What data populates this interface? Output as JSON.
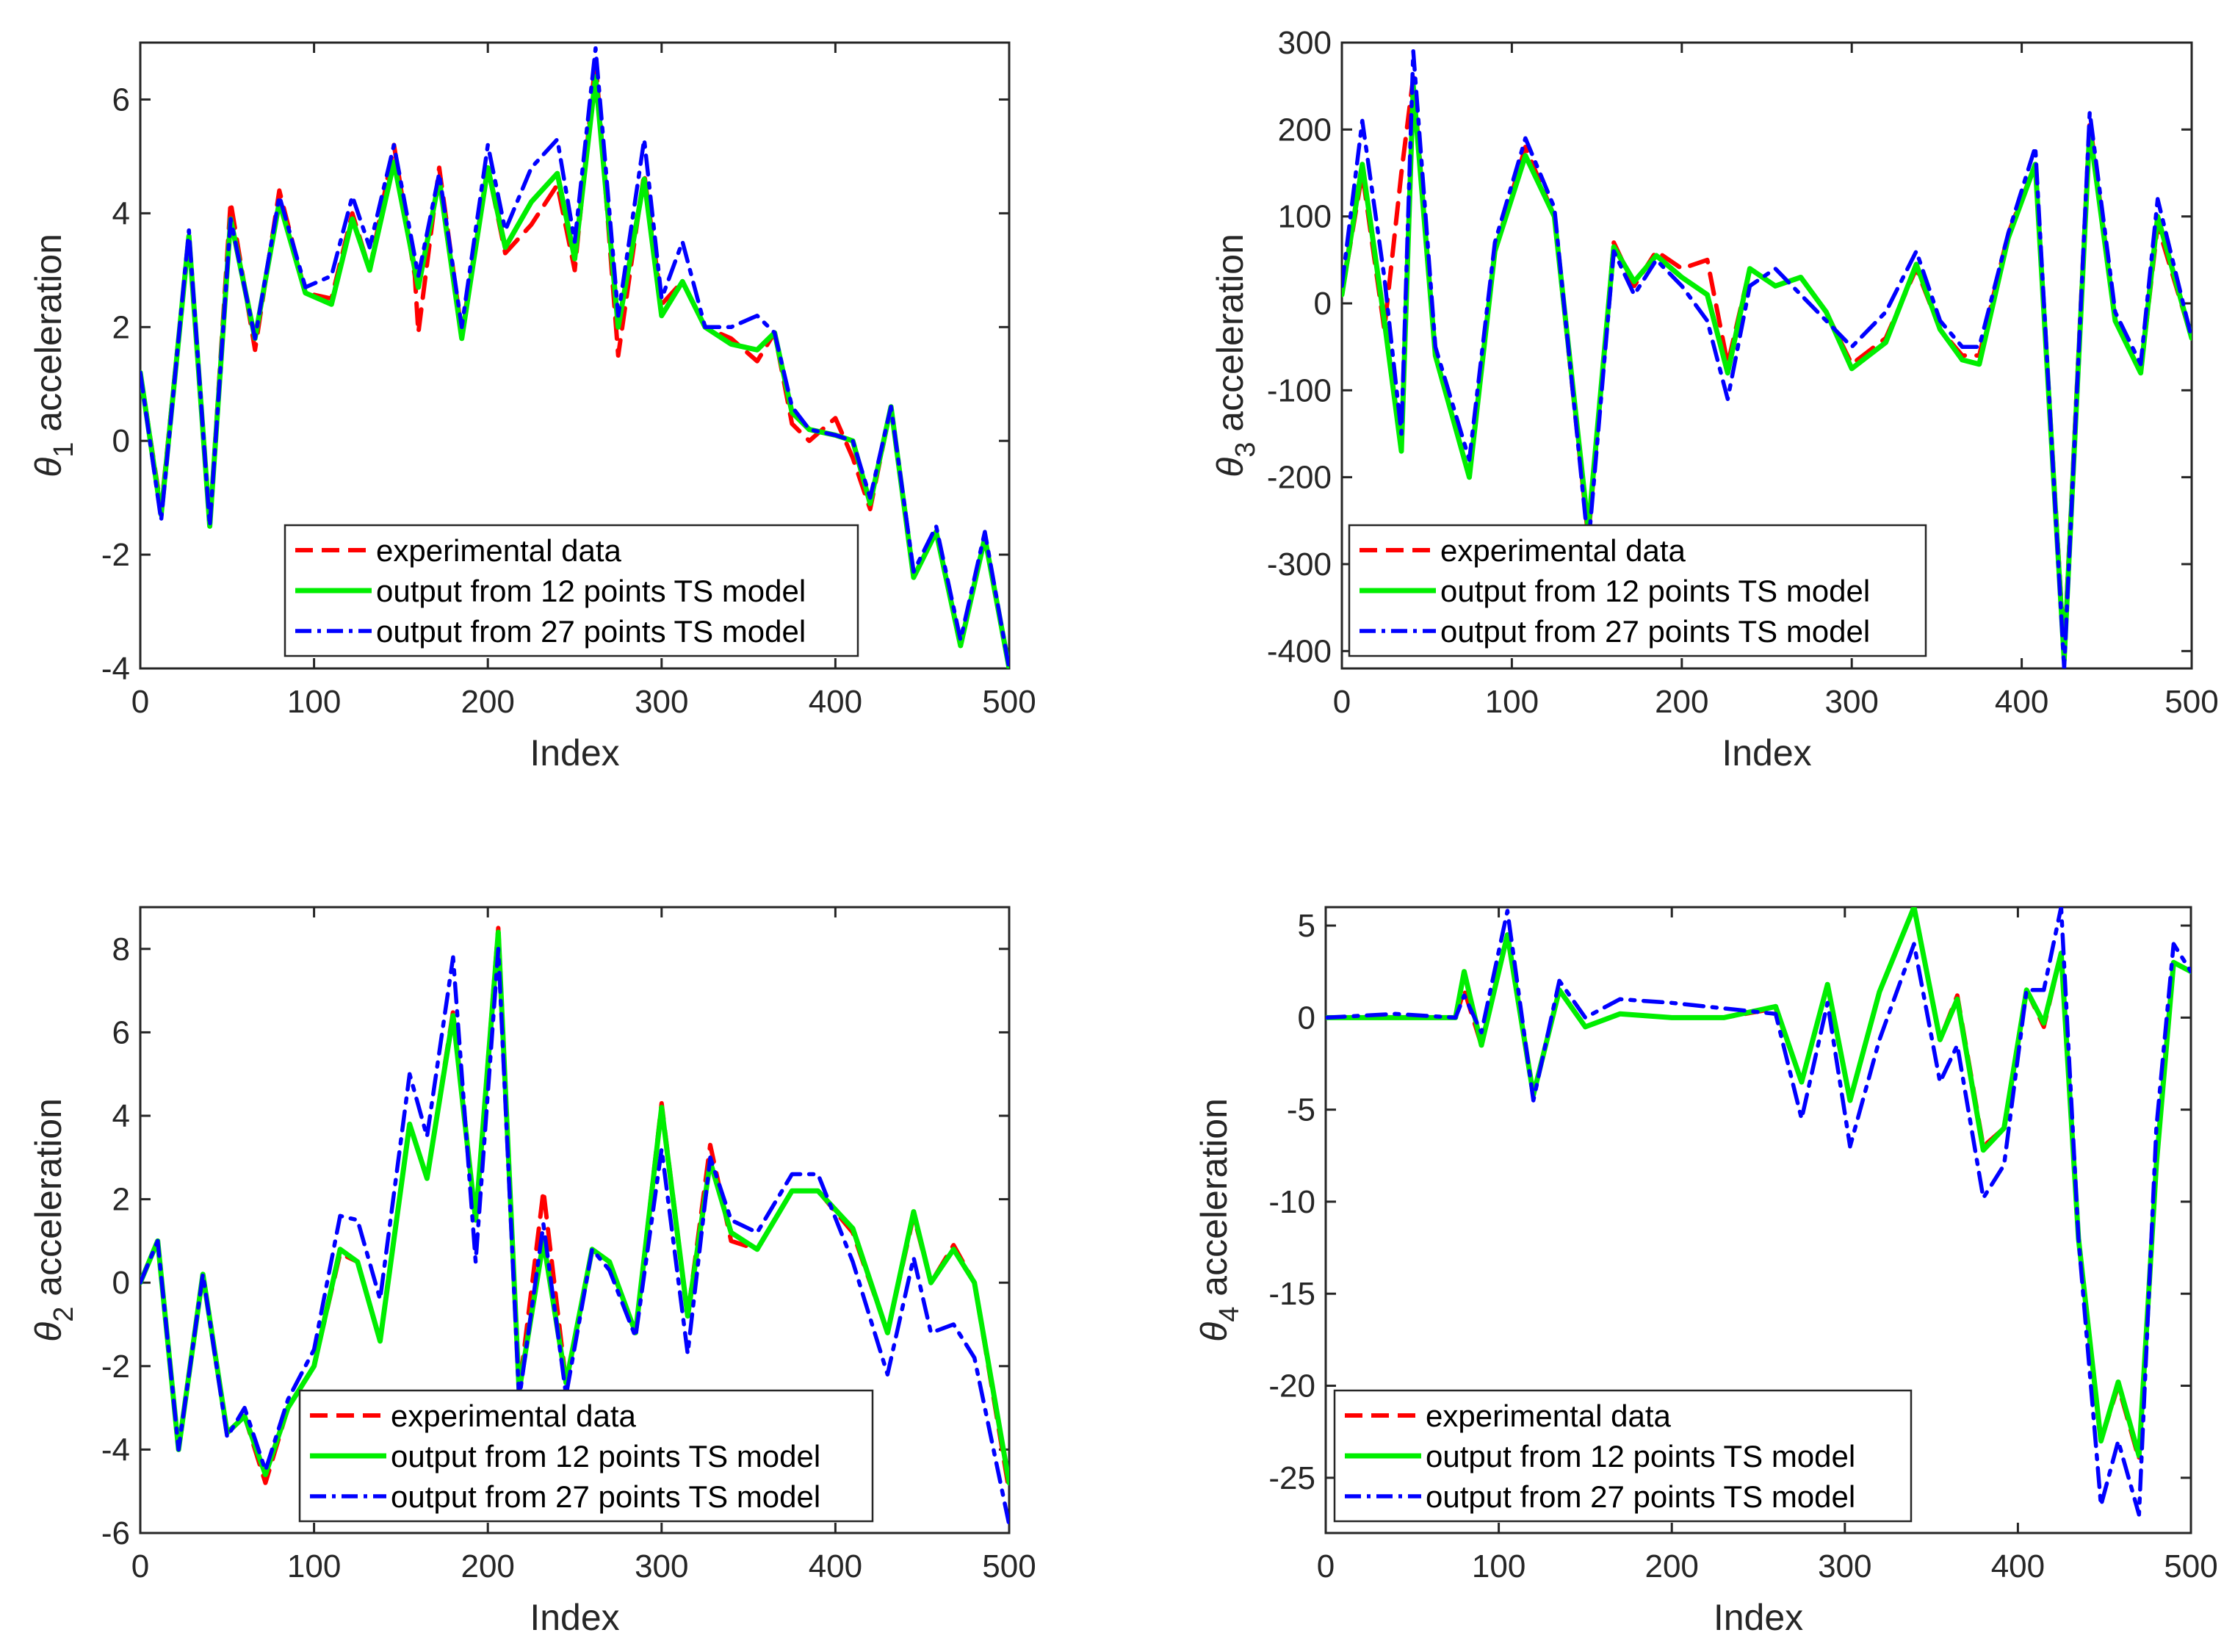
{
  "legend": {
    "experimental": "experimental data",
    "ts12": "output from 12 points TS model",
    "ts27": "output from 27 points TS model"
  },
  "colors": {
    "experimental": "#ff0000",
    "ts12": "#00ee00",
    "ts27": "#0000ff",
    "axis": "#262626"
  },
  "chart_data": [
    {
      "id": "theta1",
      "type": "line",
      "title": "",
      "xlabel": "Index",
      "ylabel_symbol": "θ",
      "ylabel_subscript": "1",
      "ylabel_text": "acceleration",
      "xlim": [
        0,
        500
      ],
      "ylim": [
        -4,
        7
      ],
      "xticks": [
        0,
        100,
        200,
        300,
        400,
        500
      ],
      "yticks": [
        -4,
        -2,
        0,
        2,
        4,
        6
      ],
      "legend_position": "bottom-center",
      "series": [
        {
          "name": "experimental data",
          "key": "experimental",
          "style": "dashed",
          "x": [
            0,
            12,
            28,
            40,
            52,
            66,
            80,
            95,
            110,
            122,
            132,
            146,
            158,
            160,
            172,
            185,
            200,
            210,
            225,
            240,
            250,
            262,
            275,
            290,
            300,
            312,
            325,
            340,
            355,
            365,
            375,
            385,
            400,
            410,
            420,
            432,
            445,
            458,
            472,
            486,
            500
          ],
          "y": [
            1.2,
            -1.2,
            3.6,
            -1.5,
            4.2,
            1.6,
            4.4,
            2.6,
            2.5,
            4.0,
            3.0,
            5.2,
            2.9,
            1.9,
            4.8,
            1.9,
            4.8,
            3.3,
            3.8,
            4.5,
            3.0,
            6.7,
            1.5,
            4.7,
            2.4,
            2.8,
            2.0,
            1.8,
            1.4,
            1.9,
            0.3,
            0.0,
            0.4,
            -0.3,
            -1.2,
            0.6,
            -2.4,
            -1.6,
            -3.6,
            -1.7,
            -4.0
          ]
        },
        {
          "name": "output from 12 points TS model",
          "key": "ts12",
          "style": "solid",
          "x": [
            0,
            12,
            28,
            40,
            52,
            66,
            80,
            95,
            110,
            122,
            132,
            146,
            160,
            172,
            185,
            200,
            210,
            225,
            240,
            250,
            262,
            275,
            290,
            300,
            312,
            325,
            340,
            355,
            365,
            375,
            385,
            400,
            410,
            420,
            432,
            445,
            458,
            472,
            486,
            500
          ],
          "y": [
            1.2,
            -1.3,
            3.6,
            -1.5,
            3.9,
            1.8,
            4.2,
            2.6,
            2.4,
            3.9,
            3.0,
            4.9,
            2.7,
            4.6,
            1.8,
            4.8,
            3.4,
            4.2,
            4.7,
            3.2,
            6.4,
            2.0,
            4.6,
            2.2,
            2.8,
            2.0,
            1.7,
            1.6,
            1.9,
            0.5,
            0.2,
            0.1,
            0.0,
            -1.1,
            0.6,
            -2.4,
            -1.6,
            -3.6,
            -1.7,
            -4.0
          ]
        },
        {
          "name": "output from 27 points TS model",
          "key": "ts27",
          "style": "dashdot",
          "x": [
            0,
            12,
            28,
            40,
            52,
            66,
            80,
            95,
            110,
            122,
            132,
            146,
            160,
            172,
            185,
            200,
            210,
            225,
            240,
            250,
            262,
            275,
            290,
            300,
            312,
            325,
            340,
            355,
            365,
            375,
            385,
            400,
            410,
            420,
            432,
            445,
            458,
            472,
            486,
            500
          ],
          "y": [
            1.2,
            -1.4,
            3.7,
            -1.5,
            3.9,
            1.8,
            4.3,
            2.7,
            2.9,
            4.3,
            3.4,
            5.2,
            2.9,
            4.7,
            2.0,
            5.2,
            3.7,
            4.8,
            5.3,
            3.5,
            6.9,
            2.2,
            5.3,
            2.5,
            3.5,
            2.0,
            2.0,
            2.2,
            1.9,
            0.6,
            0.2,
            0.1,
            0.0,
            -1.0,
            0.6,
            -2.3,
            -1.5,
            -3.5,
            -1.6,
            -4.0
          ]
        }
      ]
    },
    {
      "id": "theta3",
      "type": "line",
      "title": "",
      "xlabel": "Index",
      "ylabel_symbol": "θ",
      "ylabel_subscript": "3",
      "ylabel_text": "acceleration",
      "xlim": [
        0,
        500
      ],
      "ylim": [
        -420,
        300
      ],
      "xticks": [
        0,
        100,
        200,
        300,
        400,
        500
      ],
      "yticks": [
        -400,
        -300,
        -200,
        -100,
        0,
        100,
        200,
        300
      ],
      "legend_position": "bottom-left",
      "series": [
        {
          "name": "experimental data",
          "key": "experimental",
          "style": "dashed",
          "x": [
            0,
            12,
            25,
            35,
            42,
            55,
            75,
            90,
            108,
            125,
            145,
            160,
            172,
            185,
            200,
            215,
            227,
            240,
            255,
            270,
            285,
            300,
            320,
            338,
            352,
            365,
            375,
            392,
            408,
            425,
            440,
            455,
            470,
            480,
            500
          ],
          "y": [
            10,
            150,
            -30,
            150,
            260,
            -60,
            -200,
            60,
            180,
            100,
            -270,
            70,
            20,
            60,
            40,
            50,
            -70,
            40,
            20,
            30,
            -10,
            -70,
            -40,
            40,
            -30,
            -60,
            -60,
            80,
            160,
            -400,
            210,
            -20,
            -80,
            90,
            -40
          ]
        },
        {
          "name": "output from 12 points TS model",
          "key": "ts12",
          "style": "solid",
          "x": [
            0,
            12,
            25,
            35,
            42,
            55,
            75,
            90,
            108,
            125,
            145,
            160,
            172,
            185,
            200,
            215,
            227,
            240,
            255,
            270,
            285,
            300,
            320,
            338,
            352,
            365,
            375,
            392,
            408,
            425,
            440,
            455,
            470,
            480,
            500
          ],
          "y": [
            10,
            160,
            -20,
            -170,
            250,
            -60,
            -200,
            60,
            170,
            100,
            -260,
            65,
            25,
            55,
            30,
            10,
            -80,
            40,
            20,
            30,
            -10,
            -75,
            -45,
            45,
            -30,
            -65,
            -70,
            75,
            160,
            -410,
            200,
            -20,
            -80,
            100,
            -40
          ]
        },
        {
          "name": "output from 27 points TS model",
          "key": "ts27",
          "style": "dashdot",
          "x": [
            0,
            12,
            25,
            35,
            42,
            55,
            75,
            90,
            108,
            125,
            145,
            160,
            172,
            185,
            200,
            215,
            227,
            240,
            255,
            270,
            285,
            300,
            320,
            338,
            352,
            365,
            375,
            392,
            408,
            425,
            440,
            455,
            470,
            480,
            500
          ],
          "y": [
            20,
            210,
            30,
            -150,
            290,
            -50,
            -180,
            70,
            190,
            110,
            -280,
            60,
            10,
            50,
            20,
            -20,
            -110,
            20,
            40,
            10,
            -20,
            -50,
            -10,
            60,
            -20,
            -50,
            -50,
            80,
            180,
            -420,
            220,
            -10,
            -70,
            120,
            -40
          ]
        }
      ]
    },
    {
      "id": "theta2",
      "type": "line",
      "title": "",
      "xlabel": "Index",
      "ylabel_symbol": "θ",
      "ylabel_subscript": "2",
      "ylabel_text": "acceleration",
      "xlim": [
        0,
        500
      ],
      "ylim": [
        -6,
        9
      ],
      "xticks": [
        0,
        100,
        200,
        300,
        400,
        500
      ],
      "yticks": [
        -6,
        -4,
        -2,
        0,
        2,
        4,
        6,
        8
      ],
      "legend_position": "bottom-left",
      "series": [
        {
          "name": "experimental data",
          "key": "experimental",
          "style": "dashed",
          "x": [
            0,
            10,
            22,
            36,
            50,
            60,
            72,
            85,
            100,
            115,
            125,
            138,
            155,
            165,
            180,
            193,
            206,
            218,
            232,
            245,
            260,
            270,
            285,
            300,
            315,
            328,
            340,
            355,
            375,
            390,
            410,
            430,
            445,
            455,
            468,
            480,
            500
          ],
          "y": [
            0,
            1,
            -4,
            0.2,
            -3.6,
            -3.2,
            -4.8,
            -3,
            -2,
            0.7,
            0.5,
            -1.4,
            3.8,
            2.5,
            6.5,
            1.5,
            8.5,
            -2.6,
            2.2,
            -2.4,
            0.8,
            0.5,
            -1.2,
            4.3,
            -0.8,
            3.3,
            1.0,
            0.8,
            2.2,
            2.2,
            1.2,
            -1.2,
            1.6,
            0.0,
            0.9,
            0.0,
            -5.0
          ]
        },
        {
          "name": "output from 12 points TS model",
          "key": "ts12",
          "style": "solid",
          "x": [
            0,
            10,
            22,
            36,
            50,
            60,
            72,
            85,
            100,
            115,
            125,
            138,
            155,
            165,
            180,
            193,
            206,
            218,
            232,
            245,
            260,
            270,
            285,
            300,
            315,
            328,
            340,
            355,
            375,
            390,
            410,
            430,
            445,
            455,
            468,
            480,
            500
          ],
          "y": [
            0,
            1,
            -4,
            0.2,
            -3.6,
            -3.2,
            -4.6,
            -3,
            -2,
            0.8,
            0.5,
            -1.4,
            3.8,
            2.5,
            6.4,
            1.5,
            8.4,
            -2.6,
            1.0,
            -2.4,
            0.8,
            0.5,
            -1.2,
            4.2,
            -0.8,
            2.9,
            1.2,
            0.8,
            2.2,
            2.2,
            1.3,
            -1.2,
            1.7,
            0.0,
            0.8,
            0.0,
            -4.8
          ]
        },
        {
          "name": "output from 27 points TS model",
          "key": "ts27",
          "style": "dashdot",
          "x": [
            0,
            10,
            22,
            36,
            50,
            60,
            72,
            85,
            100,
            115,
            125,
            138,
            155,
            165,
            180,
            193,
            206,
            218,
            232,
            245,
            260,
            270,
            285,
            300,
            315,
            328,
            340,
            355,
            375,
            390,
            410,
            430,
            445,
            455,
            468,
            480,
            500
          ],
          "y": [
            0,
            1,
            -4,
            0.2,
            -3.7,
            -3.0,
            -4.5,
            -2.8,
            -1.6,
            1.6,
            1.5,
            -0.4,
            5.0,
            3.5,
            7.8,
            0.5,
            8.0,
            -2.8,
            1.4,
            -2.7,
            0.8,
            0.3,
            -1.3,
            3.2,
            -1.7,
            3.0,
            1.5,
            1.2,
            2.6,
            2.6,
            0.5,
            -2.2,
            0.6,
            -1.2,
            -1.0,
            -1.8,
            -5.8
          ]
        }
      ]
    },
    {
      "id": "theta4",
      "type": "line",
      "title": "",
      "xlabel": "Index",
      "ylabel_symbol": "θ",
      "ylabel_subscript": "4",
      "ylabel_text": "acceleration",
      "xlim": [
        0,
        500
      ],
      "ylim": [
        -28,
        6
      ],
      "xticks": [
        0,
        100,
        200,
        300,
        400,
        500
      ],
      "yticks": [
        -25,
        -20,
        -15,
        -10,
        -5,
        0,
        5
      ],
      "legend_position": "bottom-left",
      "series": [
        {
          "name": "experimental data",
          "key": "experimental",
          "style": "dashed",
          "x": [
            0,
            40,
            75,
            80,
            90,
            105,
            120,
            135,
            150,
            170,
            200,
            230,
            260,
            275,
            290,
            303,
            320,
            340,
            355,
            365,
            380,
            392,
            405,
            415,
            425,
            435,
            448,
            458,
            470,
            480,
            490,
            500
          ],
          "y": [
            0,
            0,
            0,
            1.5,
            -1.5,
            4.5,
            -4.2,
            1.5,
            -0.5,
            0.2,
            0,
            0,
            0.5,
            -3.5,
            1.8,
            -4.5,
            1.4,
            6,
            -1.2,
            1.2,
            -7,
            -6,
            1.5,
            -0.5,
            3.5,
            -12,
            -23,
            -20,
            -24,
            -8,
            3,
            2.5
          ]
        },
        {
          "name": "output from 12 points TS model",
          "key": "ts12",
          "style": "solid",
          "x": [
            0,
            40,
            75,
            80,
            90,
            105,
            120,
            135,
            150,
            170,
            200,
            230,
            260,
            275,
            290,
            303,
            320,
            340,
            355,
            365,
            380,
            392,
            405,
            415,
            425,
            435,
            448,
            458,
            470,
            480,
            490,
            500
          ],
          "y": [
            0,
            0,
            0,
            2.5,
            -1.5,
            4.5,
            -4.2,
            1.5,
            -0.5,
            0.2,
            0,
            0,
            0.6,
            -3.5,
            1.8,
            -4.5,
            1.4,
            6,
            -1.2,
            1.0,
            -7.2,
            -6,
            1.5,
            -0.3,
            3.5,
            -12,
            -23,
            -19.8,
            -23.8,
            -8,
            3,
            2.5
          ]
        },
        {
          "name": "output from 27 points TS model",
          "key": "ts27",
          "style": "dashdot",
          "x": [
            0,
            40,
            75,
            80,
            90,
            105,
            120,
            135,
            150,
            170,
            200,
            230,
            260,
            275,
            290,
            303,
            320,
            340,
            355,
            365,
            380,
            392,
            405,
            415,
            425,
            435,
            448,
            458,
            470,
            480,
            490,
            500
          ],
          "y": [
            0,
            0.2,
            0,
            1.2,
            -0.8,
            5.8,
            -4.5,
            2.0,
            0,
            1,
            0.8,
            0.5,
            0.2,
            -5.5,
            0.8,
            -7,
            -1.2,
            4,
            -3.5,
            -1.5,
            -9.8,
            -8,
            1.5,
            1.5,
            6,
            -12,
            -26.5,
            -23,
            -27,
            -6,
            4,
            2.5
          ]
        }
      ]
    }
  ]
}
